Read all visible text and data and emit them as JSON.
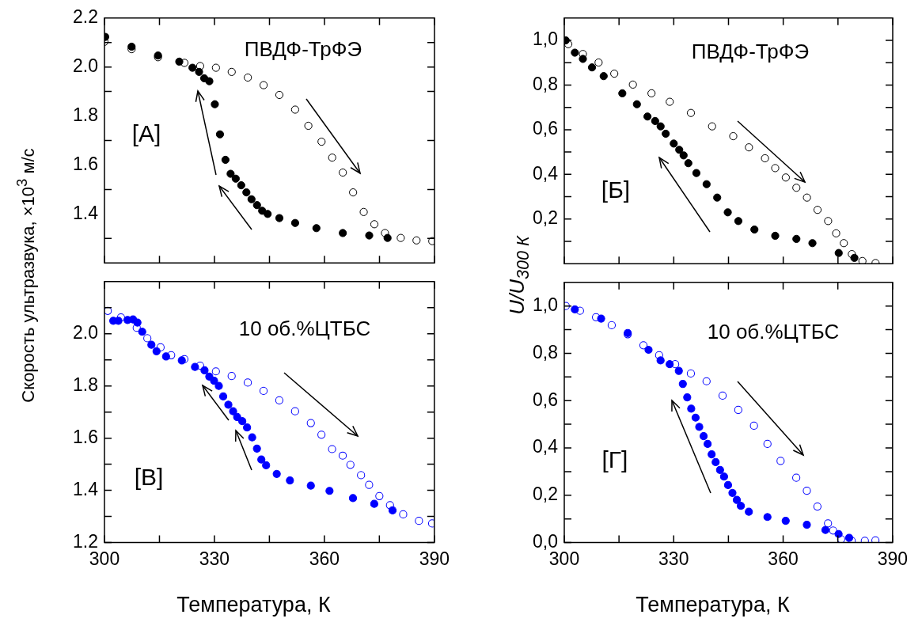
{
  "chart_data": [
    {
      "type": "scatter",
      "ylabel": "Скорость ультразвука, ×10$^{3}$ м/с",
      "annotations": [
        "ПВДФ-ТрФЭ",
        "[А]"
      ],
      "marker": "circle",
      "tick_labels": "y",
      "xlim": [
        300,
        390
      ],
      "xticks": [
        300,
        {
          "value": 315,
          "label": null
        },
        330,
        {
          "value": 345,
          "label": null
        },
        360,
        {
          "value": 375,
          "label": null
        },
        390
      ],
      "ylim": [
        1.2,
        2.2
      ],
      "yticks": [
        {
          "value": 1.3,
          "label": null
        },
        1.4,
        {
          "value": 1.5,
          "label": null
        },
        1.6,
        {
          "value": 1.7,
          "label": null
        },
        1.8,
        {
          "value": 1.9,
          "label": null
        },
        {
          "value": 2,
          "label": "2.0"
        },
        {
          "value": 2.1,
          "label": null
        },
        2.2
      ],
      "series": [
        {
          "color": "#000000",
          "x": [
            300,
            307.4,
            314.6,
            321.8,
            326.1,
            330.4,
            334.7,
            339.1,
            343.4,
            347.7,
            352.0,
            355.6,
            359.2,
            362.1,
            365.0,
            367.8,
            370.7,
            373.6,
            376.5,
            380.8,
            385.1,
            389.4
          ],
          "values": [
            2.103,
            2.073,
            2.04,
            2.017,
            2.004,
            1.997,
            1.98,
            1.957,
            1.926,
            1.886,
            1.826,
            1.76,
            1.695,
            1.63,
            1.569,
            1.488,
            1.408,
            1.358,
            1.322,
            1.302,
            1.292,
            1.289
          ]
        },
        {
          "color": "#000000",
          "x": [
            377.2,
            372.2,
            365.0,
            357.8,
            352.0,
            347.7,
            344.5,
            343.0,
            341.6,
            340.1,
            338.7,
            337.3,
            335.8,
            334.4,
            333.0,
            331.5,
            330.1,
            328.6,
            327.2,
            325.8,
            324.0,
            320.4,
            314.6,
            307.4,
            300.2
          ],
          "values": [
            1.302,
            1.312,
            1.322,
            1.342,
            1.363,
            1.383,
            1.4,
            1.413,
            1.436,
            1.46,
            1.488,
            1.517,
            1.544,
            1.564,
            1.621,
            1.725,
            1.848,
            1.942,
            1.954,
            1.98,
            1.997,
            2.022,
            2.047,
            2.083,
            2.123
          ]
        }
      ]
    },
    {
      "type": "scatter",
      "ylabel": "U/U$_{300 К}$",
      "annotations": [
        "ПВДФ-ТрФЭ",
        "[Б]"
      ],
      "marker": "circle",
      "tick_labels": "y",
      "xlim": [
        300,
        390
      ],
      "xticks": [
        300,
        {
          "value": 315,
          "label": null
        },
        330,
        {
          "value": 345,
          "label": null
        },
        360,
        {
          "value": 375,
          "label": null
        },
        390
      ],
      "ylim": [
        0,
        1.1
      ],
      "yticks": [
        {
          "value": 0.1,
          "label": null
        },
        {
          "value": 0.2,
          "label": "0,2"
        },
        {
          "value": 0.3,
          "label": null
        },
        {
          "value": 0.4,
          "label": "0,4"
        },
        {
          "value": 0.5,
          "label": null
        },
        {
          "value": 0.6,
          "label": "0,6"
        },
        {
          "value": 0.7,
          "label": null
        },
        {
          "value": 0.8,
          "label": "0,8"
        },
        {
          "value": 0.9,
          "label": null
        },
        {
          "value": 1.0,
          "label": "1,0"
        }
      ],
      "series": [
        {
          "color": "#000000",
          "x": [
            301.1,
            305.1,
            309.4,
            313.7,
            318.8,
            323.9,
            328.9,
            334.7,
            340.5,
            346.3,
            350.6,
            355.0,
            357.8,
            360.7,
            363.6,
            366.5,
            369.4,
            372.3,
            374.5,
            376.6,
            378.8,
            381.7,
            385.3
          ],
          "values": [
            0.983,
            0.939,
            0.901,
            0.851,
            0.802,
            0.763,
            0.725,
            0.675,
            0.615,
            0.571,
            0.521,
            0.472,
            0.428,
            0.386,
            0.34,
            0.296,
            0.241,
            0.191,
            0.136,
            0.092,
            0.043,
            0.012,
            0.003
          ]
        },
        {
          "color": "#000000",
          "x": [
            379.5,
            375.2,
            368.0,
            363.6,
            357.8,
            352.1,
            347.7,
            344.8,
            341.9,
            339.0,
            336.2,
            334.0,
            332.7,
            331.5,
            330.0,
            327.8,
            326.4,
            324.9,
            322.8,
            319.9,
            315.9,
            310.8,
            307.6,
            305.1,
            302.9,
            300.4
          ],
          "values": [
            0.026,
            0.048,
            0.092,
            0.111,
            0.125,
            0.153,
            0.191,
            0.23,
            0.296,
            0.356,
            0.406,
            0.45,
            0.485,
            0.51,
            0.538,
            0.582,
            0.615,
            0.639,
            0.659,
            0.714,
            0.763,
            0.84,
            0.879,
            0.917,
            0.945,
            1.0
          ]
        }
      ]
    },
    {
      "type": "scatter",
      "xlabel": "Температура, К",
      "annotations": [
        "10 об.%ЦТБС",
        "[В]"
      ],
      "marker": "circle",
      "xlim": [
        300,
        390
      ],
      "xticks": [
        300,
        {
          "value": 315,
          "label": null
        },
        330,
        {
          "value": 345,
          "label": null
        },
        360,
        {
          "value": 375,
          "label": null
        },
        390
      ],
      "ylim": [
        1.2,
        2.2
      ],
      "yticks": [
        1.2,
        {
          "value": 1.3,
          "label": null
        },
        1.4,
        {
          "value": 1.5,
          "label": null
        },
        1.6,
        {
          "value": 1.7,
          "label": null
        },
        1.8,
        {
          "value": 1.9,
          "label": null
        },
        {
          "value": 2,
          "label": "2.0"
        },
        {
          "value": 2.1,
          "label": null
        }
      ],
      "series": [
        {
          "color": "#0000ff",
          "x": [
            300.9,
            304.5,
            308.8,
            311.7,
            315.3,
            318.2,
            321.8,
            326.1,
            330.4,
            334.7,
            339.1,
            343.4,
            347.7,
            352.0,
            356.3,
            359.2,
            362.1,
            365.0,
            367.1,
            370.0,
            372.2,
            375.0,
            377.9,
            381.5,
            385.8,
            389.4
          ],
          "values": [
            2.088,
            2.063,
            2.023,
            1.983,
            1.948,
            1.918,
            1.903,
            1.878,
            1.856,
            1.838,
            1.813,
            1.781,
            1.745,
            1.703,
            1.658,
            1.613,
            1.558,
            1.533,
            1.498,
            1.458,
            1.421,
            1.378,
            1.343,
            1.308,
            1.283,
            1.273
          ]
        },
        {
          "color": "#0000ff",
          "x": [
            378.6,
            373.6,
            367.8,
            361.4,
            356.3,
            350.6,
            347.0,
            344.1,
            342.8,
            341.6,
            340.3,
            338.9,
            337.6,
            336.2,
            335.1,
            333.8,
            332.4,
            331.2,
            329.9,
            328.6,
            327.3,
            324.7,
            321.1,
            316.8,
            314.2,
            312.8,
            310.3,
            309.0,
            307.8,
            306.3,
            303.8,
            302.4
          ],
          "values": [
            1.323,
            1.348,
            1.37,
            1.398,
            1.418,
            1.438,
            1.463,
            1.496,
            1.518,
            1.56,
            1.603,
            1.641,
            1.665,
            1.681,
            1.703,
            1.728,
            1.76,
            1.8,
            1.82,
            1.836,
            1.86,
            1.873,
            1.898,
            1.913,
            1.933,
            1.958,
            2.008,
            2.043,
            2.055,
            2.053,
            2.05,
            2.05
          ]
        }
      ]
    },
    {
      "type": "scatter",
      "xlabel": "Температура, К",
      "annotations": [
        "10 об.%ЦТБС",
        "[Г]"
      ],
      "marker": "circle",
      "xlim": [
        300,
        390
      ],
      "xticks": [
        300,
        {
          "value": 315,
          "label": null
        },
        330,
        {
          "value": 345,
          "label": null
        },
        360,
        {
          "value": 375,
          "label": null
        },
        390
      ],
      "ylim": [
        0,
        1.1
      ],
      "yticks": [
        {
          "value": 0,
          "label": "0,0"
        },
        {
          "value": 0.1,
          "label": null
        },
        {
          "value": 0.2,
          "label": "0,2"
        },
        {
          "value": 0.3,
          "label": null
        },
        {
          "value": 0.4,
          "label": "0,4"
        },
        {
          "value": 0.5,
          "label": null
        },
        {
          "value": 0.6,
          "label": "0,6"
        },
        {
          "value": 0.7,
          "label": null
        },
        {
          "value": 0.8,
          "label": "0,8"
        },
        {
          "value": 0.9,
          "label": null
        },
        {
          "value": 1.0,
          "label": "1,0"
        }
      ],
      "series": [
        {
          "color": "#0000ff",
          "x": [
            300.4,
            304.3,
            308.7,
            313.0,
            317.4,
            321.7,
            326.0,
            330.4,
            334.7,
            339.0,
            343.4,
            347.7,
            352.0,
            355.7,
            359.3,
            363.6,
            366.5,
            369.4,
            372.3,
            373.7,
            375.9,
            378.8,
            382.4,
            385.3
          ],
          "values": [
            1.0,
            0.98,
            0.953,
            0.919,
            0.881,
            0.834,
            0.792,
            0.754,
            0.715,
            0.682,
            0.621,
            0.561,
            0.494,
            0.417,
            0.345,
            0.274,
            0.219,
            0.152,
            0.081,
            0.051,
            0.014,
            0.007,
            0.007,
            0.009
          ]
        },
        {
          "color": "#0000ff",
          "x": [
            378.1,
            375.2,
            371.6,
            366.5,
            360.7,
            355.7,
            350.6,
            348.4,
            347.3,
            346.1,
            344.9,
            343.8,
            342.7,
            341.5,
            340.4,
            339.3,
            338.2,
            337.0,
            336.0,
            334.8,
            333.7,
            332.5,
            331.4,
            328.9,
            326.4,
            323.1,
            317.4,
            310.1,
            302.9
          ],
          "values": [
            0.02,
            0.036,
            0.053,
            0.075,
            0.092,
            0.108,
            0.13,
            0.155,
            0.18,
            0.21,
            0.243,
            0.279,
            0.307,
            0.34,
            0.373,
            0.417,
            0.45,
            0.489,
            0.528,
            0.566,
            0.614,
            0.671,
            0.726,
            0.754,
            0.77,
            0.815,
            0.886,
            0.947,
            0.986
          ]
        }
      ]
    }
  ]
}
